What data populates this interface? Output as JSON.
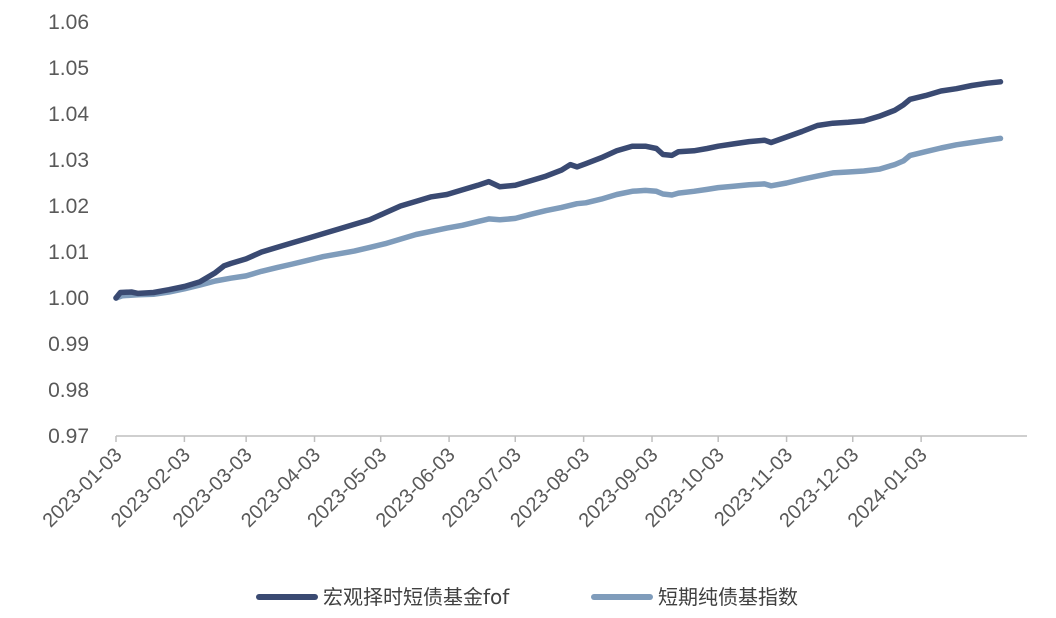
{
  "chart_data": {
    "type": "line",
    "title": "",
    "xlabel": "",
    "ylabel": "",
    "ylim": [
      0.97,
      1.06
    ],
    "y_ticks": [
      "0.97",
      "0.98",
      "0.99",
      "1.00",
      "1.01",
      "1.02",
      "1.03",
      "1.04",
      "1.05",
      "1.06"
    ],
    "x_ticks": [
      "2023-01-03",
      "2023-02-03",
      "2023-03-03",
      "2023-04-03",
      "2023-05-03",
      "2023-06-03",
      "2023-07-03",
      "2023-08-03",
      "2023-09-03",
      "2023-10-03",
      "2023-11-03",
      "2023-12-03",
      "2024-01-03"
    ],
    "x_range": [
      "2023-01-03",
      "2024-02-20"
    ],
    "grid": false,
    "legend_position": "bottom",
    "series": [
      {
        "name": "宏观择时短债基金fof",
        "color": "#3a4a72",
        "points": [
          [
            "2023-01-03",
            1.0
          ],
          [
            "2023-01-05",
            1.0012
          ],
          [
            "2023-01-10",
            1.0013
          ],
          [
            "2023-01-13",
            1.001
          ],
          [
            "2023-01-20",
            1.0012
          ],
          [
            "2023-01-27",
            1.0018
          ],
          [
            "2023-02-03",
            1.0025
          ],
          [
            "2023-02-10",
            1.0035
          ],
          [
            "2023-02-17",
            1.0055
          ],
          [
            "2023-02-21",
            1.007
          ],
          [
            "2023-02-24",
            1.0075
          ],
          [
            "2023-03-03",
            1.0085
          ],
          [
            "2023-03-10",
            1.01
          ],
          [
            "2023-03-17",
            1.011
          ],
          [
            "2023-03-24",
            1.012
          ],
          [
            "2023-03-31",
            1.013
          ],
          [
            "2023-04-07",
            1.014
          ],
          [
            "2023-04-14",
            1.015
          ],
          [
            "2023-04-21",
            1.016
          ],
          [
            "2023-04-28",
            1.017
          ],
          [
            "2023-05-05",
            1.0185
          ],
          [
            "2023-05-12",
            1.02
          ],
          [
            "2023-05-19",
            1.021
          ],
          [
            "2023-05-26",
            1.022
          ],
          [
            "2023-06-02",
            1.0225
          ],
          [
            "2023-06-09",
            1.0235
          ],
          [
            "2023-06-16",
            1.0245
          ],
          [
            "2023-06-21",
            1.0253
          ],
          [
            "2023-06-26",
            1.0242
          ],
          [
            "2023-07-03",
            1.0245
          ],
          [
            "2023-07-10",
            1.0255
          ],
          [
            "2023-07-17",
            1.0265
          ],
          [
            "2023-07-24",
            1.0278
          ],
          [
            "2023-07-28",
            1.029
          ],
          [
            "2023-07-31",
            1.0285
          ],
          [
            "2023-08-04",
            1.0292
          ],
          [
            "2023-08-11",
            1.0305
          ],
          [
            "2023-08-18",
            1.032
          ],
          [
            "2023-08-25",
            1.033
          ],
          [
            "2023-08-31",
            1.033
          ],
          [
            "2023-09-05",
            1.0325
          ],
          [
            "2023-09-08",
            1.0312
          ],
          [
            "2023-09-12",
            1.031
          ],
          [
            "2023-09-15",
            1.0318
          ],
          [
            "2023-09-22",
            1.032
          ],
          [
            "2023-09-28",
            1.0325
          ],
          [
            "2023-10-03",
            1.033
          ],
          [
            "2023-10-10",
            1.0335
          ],
          [
            "2023-10-17",
            1.034
          ],
          [
            "2023-10-24",
            1.0343
          ],
          [
            "2023-10-27",
            1.0338
          ],
          [
            "2023-11-03",
            1.035
          ],
          [
            "2023-11-10",
            1.0362
          ],
          [
            "2023-11-17",
            1.0375
          ],
          [
            "2023-11-24",
            1.038
          ],
          [
            "2023-12-01",
            1.0382
          ],
          [
            "2023-12-08",
            1.0385
          ],
          [
            "2023-12-15",
            1.0395
          ],
          [
            "2023-12-22",
            1.0408
          ],
          [
            "2023-12-26",
            1.042
          ],
          [
            "2023-12-29",
            1.0432
          ],
          [
            "2024-01-05",
            1.044
          ],
          [
            "2024-01-12",
            1.045
          ],
          [
            "2024-01-19",
            1.0455
          ],
          [
            "2024-01-26",
            1.0462
          ],
          [
            "2024-02-02",
            1.0467
          ],
          [
            "2024-02-08",
            1.047
          ]
        ]
      },
      {
        "name": "短期纯债基指数",
        "color": "#7f9cbb",
        "points": [
          [
            "2023-01-03",
            1.0
          ],
          [
            "2023-01-06",
            1.0005
          ],
          [
            "2023-01-13",
            1.0007
          ],
          [
            "2023-01-20",
            1.0008
          ],
          [
            "2023-01-27",
            1.0013
          ],
          [
            "2023-02-03",
            1.002
          ],
          [
            "2023-02-10",
            1.0028
          ],
          [
            "2023-02-17",
            1.0037
          ],
          [
            "2023-02-24",
            1.0043
          ],
          [
            "2023-03-03",
            1.0048
          ],
          [
            "2023-03-10",
            1.0058
          ],
          [
            "2023-03-17",
            1.0066
          ],
          [
            "2023-03-24",
            1.0074
          ],
          [
            "2023-03-31",
            1.0082
          ],
          [
            "2023-04-07",
            1.009
          ],
          [
            "2023-04-14",
            1.0096
          ],
          [
            "2023-04-21",
            1.0102
          ],
          [
            "2023-04-28",
            1.011
          ],
          [
            "2023-05-05",
            1.0118
          ],
          [
            "2023-05-12",
            1.0128
          ],
          [
            "2023-05-19",
            1.0138
          ],
          [
            "2023-05-26",
            1.0145
          ],
          [
            "2023-06-02",
            1.0152
          ],
          [
            "2023-06-09",
            1.0158
          ],
          [
            "2023-06-16",
            1.0166
          ],
          [
            "2023-06-21",
            1.0172
          ],
          [
            "2023-06-26",
            1.017
          ],
          [
            "2023-07-03",
            1.0173
          ],
          [
            "2023-07-10",
            1.0182
          ],
          [
            "2023-07-17",
            1.019
          ],
          [
            "2023-07-24",
            1.0197
          ],
          [
            "2023-07-31",
            1.0205
          ],
          [
            "2023-08-04",
            1.0207
          ],
          [
            "2023-08-11",
            1.0215
          ],
          [
            "2023-08-18",
            1.0225
          ],
          [
            "2023-08-25",
            1.0232
          ],
          [
            "2023-08-31",
            1.0234
          ],
          [
            "2023-09-05",
            1.0232
          ],
          [
            "2023-09-08",
            1.0226
          ],
          [
            "2023-09-12",
            1.0224
          ],
          [
            "2023-09-15",
            1.0228
          ],
          [
            "2023-09-22",
            1.0232
          ],
          [
            "2023-09-28",
            1.0236
          ],
          [
            "2023-10-03",
            1.024
          ],
          [
            "2023-10-10",
            1.0243
          ],
          [
            "2023-10-17",
            1.0246
          ],
          [
            "2023-10-24",
            1.0248
          ],
          [
            "2023-10-27",
            1.0244
          ],
          [
            "2023-11-03",
            1.025
          ],
          [
            "2023-11-10",
            1.0258
          ],
          [
            "2023-11-17",
            1.0265
          ],
          [
            "2023-11-24",
            1.0272
          ],
          [
            "2023-12-01",
            1.0274
          ],
          [
            "2023-12-08",
            1.0276
          ],
          [
            "2023-12-15",
            1.028
          ],
          [
            "2023-12-22",
            1.029
          ],
          [
            "2023-12-26",
            1.0298
          ],
          [
            "2023-12-29",
            1.031
          ],
          [
            "2024-01-05",
            1.0318
          ],
          [
            "2024-01-12",
            1.0326
          ],
          [
            "2024-01-19",
            1.0333
          ],
          [
            "2024-01-26",
            1.0338
          ],
          [
            "2024-02-02",
            1.0343
          ],
          [
            "2024-02-08",
            1.0347
          ]
        ]
      }
    ]
  }
}
